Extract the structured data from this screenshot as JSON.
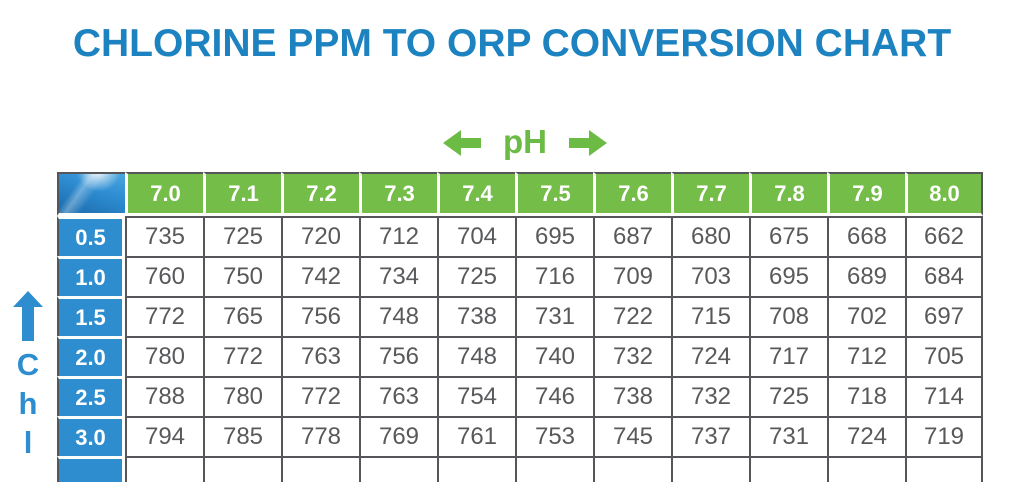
{
  "title": "CHLORINE PPM TO ORP CONVERSION CHART",
  "ph_axis": {
    "label": "pH"
  },
  "chlorine_axis": {
    "visible_letters": [
      "C",
      "h",
      "l"
    ]
  },
  "colors": {
    "title_blue": "#1d82c0",
    "header_green": "#74bd48",
    "row_header_blue": "#2d8dce",
    "value_text_gray": "#58595b",
    "grid_border_gray": "#55565a",
    "axis_arrow_green": "#6cbb45"
  },
  "icons": {
    "ph_left": "left-arrow-icon",
    "ph_right": "right-arrow-icon",
    "chlorine_up": "up-arrow-icon",
    "corner": "water-light-image"
  },
  "chart_data": {
    "type": "table",
    "title": "CHLORINE PPM TO ORP CONVERSION CHART",
    "x_axis": {
      "label": "pH",
      "tick_labels": [
        "7.0",
        "7.1",
        "7.2",
        "7.3",
        "7.4",
        "7.5",
        "7.6",
        "7.7",
        "7.8",
        "7.9",
        "8.0"
      ]
    },
    "y_axis": {
      "label_visible": "Chl",
      "tick_labels": [
        "0.5",
        "1.0",
        "1.5",
        "2.0",
        "2.5",
        "3.0"
      ]
    },
    "rows": [
      {
        "chlorine_ppm": "0.5",
        "orp_values": [
          735,
          725,
          720,
          712,
          704,
          695,
          687,
          680,
          675,
          668,
          662
        ]
      },
      {
        "chlorine_ppm": "1.0",
        "orp_values": [
          760,
          750,
          742,
          734,
          725,
          716,
          709,
          703,
          695,
          689,
          684
        ]
      },
      {
        "chlorine_ppm": "1.5",
        "orp_values": [
          772,
          765,
          756,
          748,
          738,
          731,
          722,
          715,
          708,
          702,
          697
        ]
      },
      {
        "chlorine_ppm": "2.0",
        "orp_values": [
          780,
          772,
          763,
          756,
          748,
          740,
          732,
          724,
          717,
          712,
          705
        ]
      },
      {
        "chlorine_ppm": "2.5",
        "orp_values": [
          788,
          780,
          772,
          763,
          754,
          746,
          738,
          732,
          725,
          718,
          714
        ]
      },
      {
        "chlorine_ppm": "3.0",
        "orp_values": [
          794,
          785,
          778,
          769,
          761,
          753,
          745,
          737,
          731,
          724,
          719
        ]
      }
    ],
    "partial_row_visible": true
  }
}
